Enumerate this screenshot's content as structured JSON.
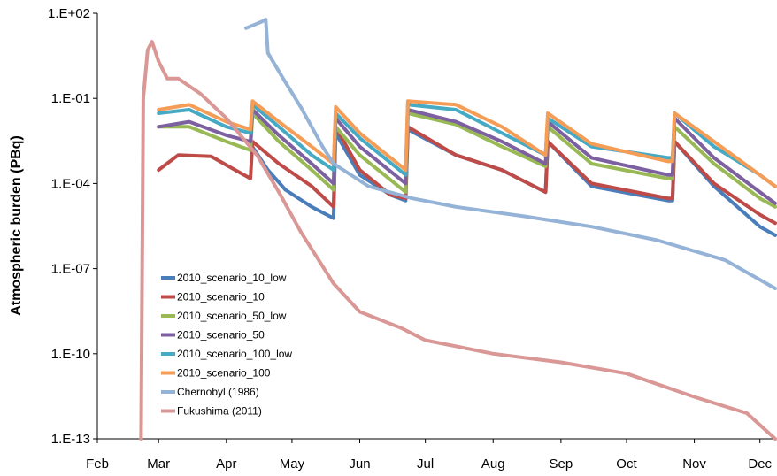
{
  "chart_data": {
    "type": "line",
    "title": "",
    "xlabel": "",
    "ylabel": "Atmospheric burden (PBq)",
    "yscale": "log",
    "ylim": [
      1e-13,
      100
    ],
    "yticks": [
      {
        "v": 1e-13,
        "label": "1.E-13"
      },
      {
        "v": 1e-10,
        "label": "1.E-10"
      },
      {
        "v": 1e-07,
        "label": "1.E-07"
      },
      {
        "v": 0.0001,
        "label": "1.E-04"
      },
      {
        "v": 0.1,
        "label": "1.E-01"
      },
      {
        "v": 100,
        "label": "1.E+02"
      }
    ],
    "xlim": [
      "02-01",
      "12-08"
    ],
    "xticks": [
      {
        "date": "02-01",
        "label": "Feb"
      },
      {
        "date": "03-01",
        "label": "Mar"
      },
      {
        "date": "04-01",
        "label": "Apr"
      },
      {
        "date": "05-01",
        "label": "May"
      },
      {
        "date": "06-01",
        "label": "Jun"
      },
      {
        "date": "07-01",
        "label": "Jul"
      },
      {
        "date": "08-01",
        "label": "Aug"
      },
      {
        "date": "09-01",
        "label": "Sep"
      },
      {
        "date": "10-01",
        "label": "Oct"
      },
      {
        "date": "11-01",
        "label": "Nov"
      },
      {
        "date": "12-01",
        "label": "Dec"
      }
    ],
    "grid": false,
    "legend_position": "bottom-left",
    "series": [
      {
        "name": "2010_scenario_10_low",
        "color": "#4A7EBB",
        "points": [
          [
            "04-12",
            0.0025
          ],
          [
            "04-20",
            0.0003
          ],
          [
            "04-28",
            6e-05
          ],
          [
            "05-10",
            1.5e-05
          ],
          [
            "05-20",
            6e-06
          ],
          [
            "05-21",
            0.006
          ],
          [
            "06-01",
            0.0002
          ],
          [
            "06-15",
            4e-05
          ],
          [
            "06-22",
            2.5e-05
          ],
          [
            "06-23",
            0.008
          ],
          [
            "07-15",
            0.001
          ],
          [
            "08-05",
            0.0003
          ],
          [
            "08-25",
            5e-05
          ],
          [
            "08-26",
            0.003
          ],
          [
            "09-15",
            8e-05
          ],
          [
            "10-20",
            2.5e-05
          ],
          [
            "10-22",
            2.5e-05
          ],
          [
            "10-23",
            0.003
          ],
          [
            "11-10",
            8e-05
          ],
          [
            "12-01",
            3e-06
          ],
          [
            "12-08",
            1.5e-06
          ]
        ]
      },
      {
        "name": "2010_scenario_10",
        "color": "#BE4B48",
        "points": [
          [
            "03-01",
            0.0003
          ],
          [
            "03-10",
            0.001
          ],
          [
            "03-25",
            0.0009
          ],
          [
            "04-05",
            0.0003
          ],
          [
            "04-12",
            0.00015
          ],
          [
            "04-13",
            0.003
          ],
          [
            "04-25",
            0.0005
          ],
          [
            "05-10",
            8e-05
          ],
          [
            "05-20",
            1.5e-05
          ],
          [
            "05-21",
            0.01
          ],
          [
            "06-01",
            0.0003
          ],
          [
            "06-15",
            4e-05
          ],
          [
            "06-22",
            3e-05
          ],
          [
            "06-23",
            0.01
          ],
          [
            "07-15",
            0.001
          ],
          [
            "08-05",
            0.0003
          ],
          [
            "08-25",
            5e-05
          ],
          [
            "08-26",
            0.003
          ],
          [
            "09-15",
            0.0001
          ],
          [
            "10-20",
            3e-05
          ],
          [
            "10-22",
            3e-05
          ],
          [
            "10-23",
            0.003
          ],
          [
            "11-10",
            0.0001
          ],
          [
            "12-01",
            8e-06
          ],
          [
            "12-08",
            4e-06
          ]
        ]
      },
      {
        "name": "2010_scenario_50_low",
        "color": "#98B954",
        "points": [
          [
            "03-01",
            0.01
          ],
          [
            "03-15",
            0.01
          ],
          [
            "04-01",
            0.003
          ],
          [
            "04-12",
            0.0015
          ],
          [
            "04-13",
            0.03
          ],
          [
            "04-25",
            0.003
          ],
          [
            "05-10",
            0.0003
          ],
          [
            "05-20",
            6e-05
          ],
          [
            "05-21",
            0.01
          ],
          [
            "06-01",
            0.001
          ],
          [
            "06-22",
            5e-05
          ],
          [
            "06-23",
            0.03
          ],
          [
            "07-15",
            0.012
          ],
          [
            "08-05",
            0.002
          ],
          [
            "08-25",
            0.0004
          ],
          [
            "08-26",
            0.01
          ],
          [
            "09-15",
            0.0005
          ],
          [
            "10-20",
            0.00015
          ],
          [
            "10-22",
            0.00015
          ],
          [
            "10-23",
            0.01
          ],
          [
            "11-10",
            0.0005
          ],
          [
            "12-01",
            3e-05
          ],
          [
            "12-08",
            1.5e-05
          ]
        ]
      },
      {
        "name": "2010_scenario_50",
        "color": "#7D60A0",
        "points": [
          [
            "03-01",
            0.01
          ],
          [
            "03-15",
            0.015
          ],
          [
            "04-01",
            0.005
          ],
          [
            "04-12",
            0.003
          ],
          [
            "04-13",
            0.04
          ],
          [
            "04-25",
            0.005
          ],
          [
            "05-10",
            0.0005
          ],
          [
            "05-20",
            0.0001
          ],
          [
            "05-21",
            0.02
          ],
          [
            "06-01",
            0.002
          ],
          [
            "06-22",
            0.0001
          ],
          [
            "06-23",
            0.04
          ],
          [
            "07-15",
            0.015
          ],
          [
            "08-05",
            0.003
          ],
          [
            "08-25",
            0.0005
          ],
          [
            "08-26",
            0.015
          ],
          [
            "09-15",
            0.0008
          ],
          [
            "10-20",
            0.0002
          ],
          [
            "10-22",
            0.0002
          ],
          [
            "10-23",
            0.02
          ],
          [
            "11-10",
            0.0008
          ],
          [
            "12-01",
            5e-05
          ],
          [
            "12-08",
            2e-05
          ]
        ]
      },
      {
        "name": "2010_scenario_100_low",
        "color": "#46AAC5",
        "points": [
          [
            "03-01",
            0.03
          ],
          [
            "03-15",
            0.04
          ],
          [
            "04-01",
            0.01
          ],
          [
            "04-12",
            0.006
          ],
          [
            "04-13",
            0.06
          ],
          [
            "04-25",
            0.01
          ],
          [
            "05-10",
            0.001
          ],
          [
            "05-20",
            0.0003
          ],
          [
            "05-21",
            0.03
          ],
          [
            "06-01",
            0.004
          ],
          [
            "06-22",
            0.0002
          ],
          [
            "06-23",
            0.06
          ],
          [
            "07-15",
            0.04
          ],
          [
            "08-05",
            0.006
          ],
          [
            "08-25",
            0.001
          ],
          [
            "08-26",
            0.02
          ],
          [
            "09-15",
            0.002
          ],
          [
            "10-20",
            0.0008
          ],
          [
            "10-22",
            0.0008
          ],
          [
            "10-23",
            0.03
          ],
          [
            "11-10",
            0.002
          ],
          [
            "12-01",
            0.0002
          ],
          [
            "12-08",
            8e-05
          ]
        ]
      },
      {
        "name": "2010_scenario_100",
        "color": "#F59D56",
        "points": [
          [
            "03-01",
            0.04
          ],
          [
            "03-15",
            0.06
          ],
          [
            "04-01",
            0.015
          ],
          [
            "04-12",
            0.008
          ],
          [
            "04-13",
            0.08
          ],
          [
            "04-25",
            0.015
          ],
          [
            "05-10",
            0.002
          ],
          [
            "05-20",
            0.0005
          ],
          [
            "05-21",
            0.05
          ],
          [
            "06-01",
            0.006
          ],
          [
            "06-22",
            0.0003
          ],
          [
            "06-23",
            0.08
          ],
          [
            "07-15",
            0.06
          ],
          [
            "08-05",
            0.01
          ],
          [
            "08-25",
            0.001
          ],
          [
            "08-26",
            0.03
          ],
          [
            "09-15",
            0.0025
          ],
          [
            "10-20",
            0.0006
          ],
          [
            "10-22",
            0.0006
          ],
          [
            "10-23",
            0.03
          ],
          [
            "11-10",
            0.003
          ],
          [
            "12-01",
            0.0002
          ],
          [
            "12-08",
            8e-05
          ]
        ]
      },
      {
        "name": "Chernobyl (1986)",
        "color": "#95B3D7",
        "points": [
          [
            "04-10",
            30
          ],
          [
            "04-17",
            50
          ],
          [
            "04-19",
            60
          ],
          [
            "04-20",
            4
          ],
          [
            "04-27",
            0.5
          ],
          [
            "05-05",
            0.05
          ],
          [
            "05-15",
            0.002
          ],
          [
            "05-20",
            0.0005
          ],
          [
            "06-05",
            8e-05
          ],
          [
            "06-25",
            3e-05
          ],
          [
            "07-15",
            1.5e-05
          ],
          [
            "08-15",
            7e-06
          ],
          [
            "09-15",
            3e-06
          ],
          [
            "10-15",
            1e-06
          ],
          [
            "11-15",
            2e-07
          ],
          [
            "12-08",
            2e-08
          ]
        ]
      },
      {
        "name": "Fukushima (2011)",
        "color": "#D99795",
        "points": [
          [
            "02-21",
            1e-13
          ],
          [
            "02-21",
            1e-13
          ],
          [
            "02-22",
            0.1
          ],
          [
            "02-24",
            5
          ],
          [
            "02-26",
            10
          ],
          [
            "03-01",
            2
          ],
          [
            "03-05",
            0.5
          ],
          [
            "03-10",
            0.5
          ],
          [
            "03-20",
            0.15
          ],
          [
            "04-01",
            0.02
          ],
          [
            "04-15",
            0.001
          ],
          [
            "04-25",
            5e-05
          ],
          [
            "05-05",
            2e-06
          ],
          [
            "05-20",
            3e-08
          ],
          [
            "06-01",
            3e-09
          ],
          [
            "06-20",
            8e-10
          ],
          [
            "07-01",
            3e-10
          ],
          [
            "08-01",
            1e-10
          ],
          [
            "09-01",
            5e-11
          ],
          [
            "10-01",
            2e-11
          ],
          [
            "11-01",
            3e-12
          ],
          [
            "11-25",
            8e-13
          ],
          [
            "12-08",
            1e-13
          ]
        ]
      }
    ]
  }
}
